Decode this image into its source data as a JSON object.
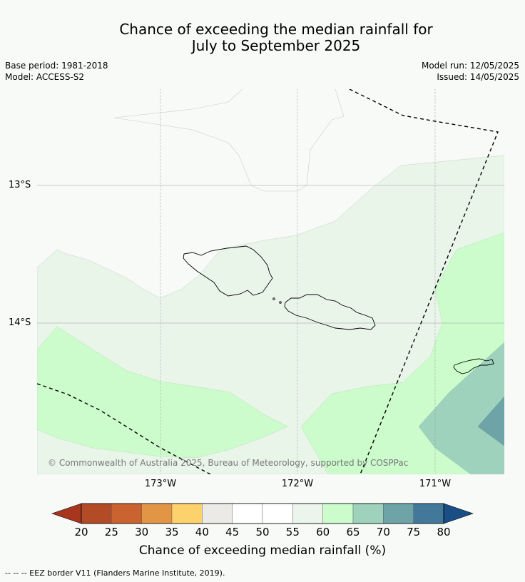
{
  "header": {
    "title_line1": "Chance of exceeding the median rainfall for",
    "title_line2": "July to September 2025",
    "base_period": "Base period: 1981-2018",
    "model": "Model: ACCESS-S2",
    "model_run": "Model run: 12/05/2025",
    "issued": "Issued: 14/05/2025"
  },
  "map": {
    "lat_labels": [
      "13°S",
      "14°S"
    ],
    "lon_labels": [
      "173°W",
      "172°W",
      "171°W"
    ],
    "copyright": "© Commonwealth of Australia 2025, Bureau of Meteorology, supported by COSPPac",
    "colors": {
      "c45_55": "#f7faf7",
      "c55_60": "#e9f5e9",
      "c60_65": "#ccfccc",
      "c65_70": "#9ed2bc",
      "c70_75": "#6ea4a8"
    }
  },
  "colorbar": {
    "ticks": [
      "20",
      "25",
      "30",
      "35",
      "40",
      "45",
      "50",
      "55",
      "60",
      "65",
      "70",
      "75",
      "80"
    ],
    "colors": [
      "#a8361f",
      "#b24b26",
      "#cb6331",
      "#e39546",
      "#fdd26d",
      "#ebeae6",
      "#ffffff",
      "#ffffff",
      "#ebf5eb",
      "#ccfccc",
      "#9ed2bc",
      "#6ea4a8",
      "#42799b",
      "#194f86"
    ],
    "label": "Chance of exceeding median rainfall (%)"
  },
  "footnote": "--  --  -- EEZ border V11 (Flanders Marine Institute, 2019)."
}
